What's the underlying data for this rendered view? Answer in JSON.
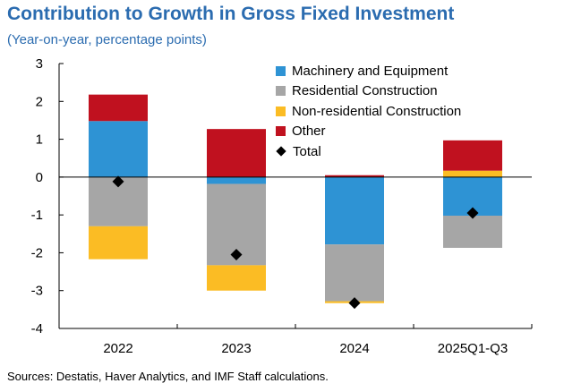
{
  "title": "Contribution to Growth in Gross Fixed Investment",
  "subtitle": "(Year-on-year, percentage points)",
  "source": "Sources: Destatis, Haver Analytics, and IMF Staff calculations.",
  "chart_data": {
    "type": "bar",
    "stacked": true,
    "categories": [
      "2022",
      "2023",
      "2024",
      "2025Q1-Q3"
    ],
    "ylim": [
      -4,
      3
    ],
    "yticks": [
      -4,
      -3,
      -2,
      -1,
      0,
      1,
      2,
      3
    ],
    "ytick_labels": [
      "-4",
      "-3",
      "-2",
      "-1",
      "0",
      "1",
      "2",
      "3"
    ],
    "grid": false,
    "legend_position": "top-right",
    "series": [
      {
        "name": "Machinery and Equipment",
        "color": "#2e93d4",
        "values": [
          1.48,
          -0.18,
          -1.78,
          -1.02
        ]
      },
      {
        "name": "Residential Construction",
        "color": "#a6a6a6",
        "values": [
          -1.3,
          -2.15,
          -1.5,
          -0.85
        ]
      },
      {
        "name": "Non-residential Construction",
        "color": "#fbbc24",
        "values": [
          -0.87,
          -0.67,
          -0.05,
          0.17
        ]
      },
      {
        "name": "Other",
        "color": "#c0111f",
        "values": [
          0.7,
          1.27,
          0.05,
          0.8
        ]
      }
    ],
    "total": {
      "name": "Total",
      "marker": "diamond",
      "color": "#000000",
      "values": [
        -0.12,
        -2.05,
        -3.33,
        -0.95
      ]
    }
  }
}
